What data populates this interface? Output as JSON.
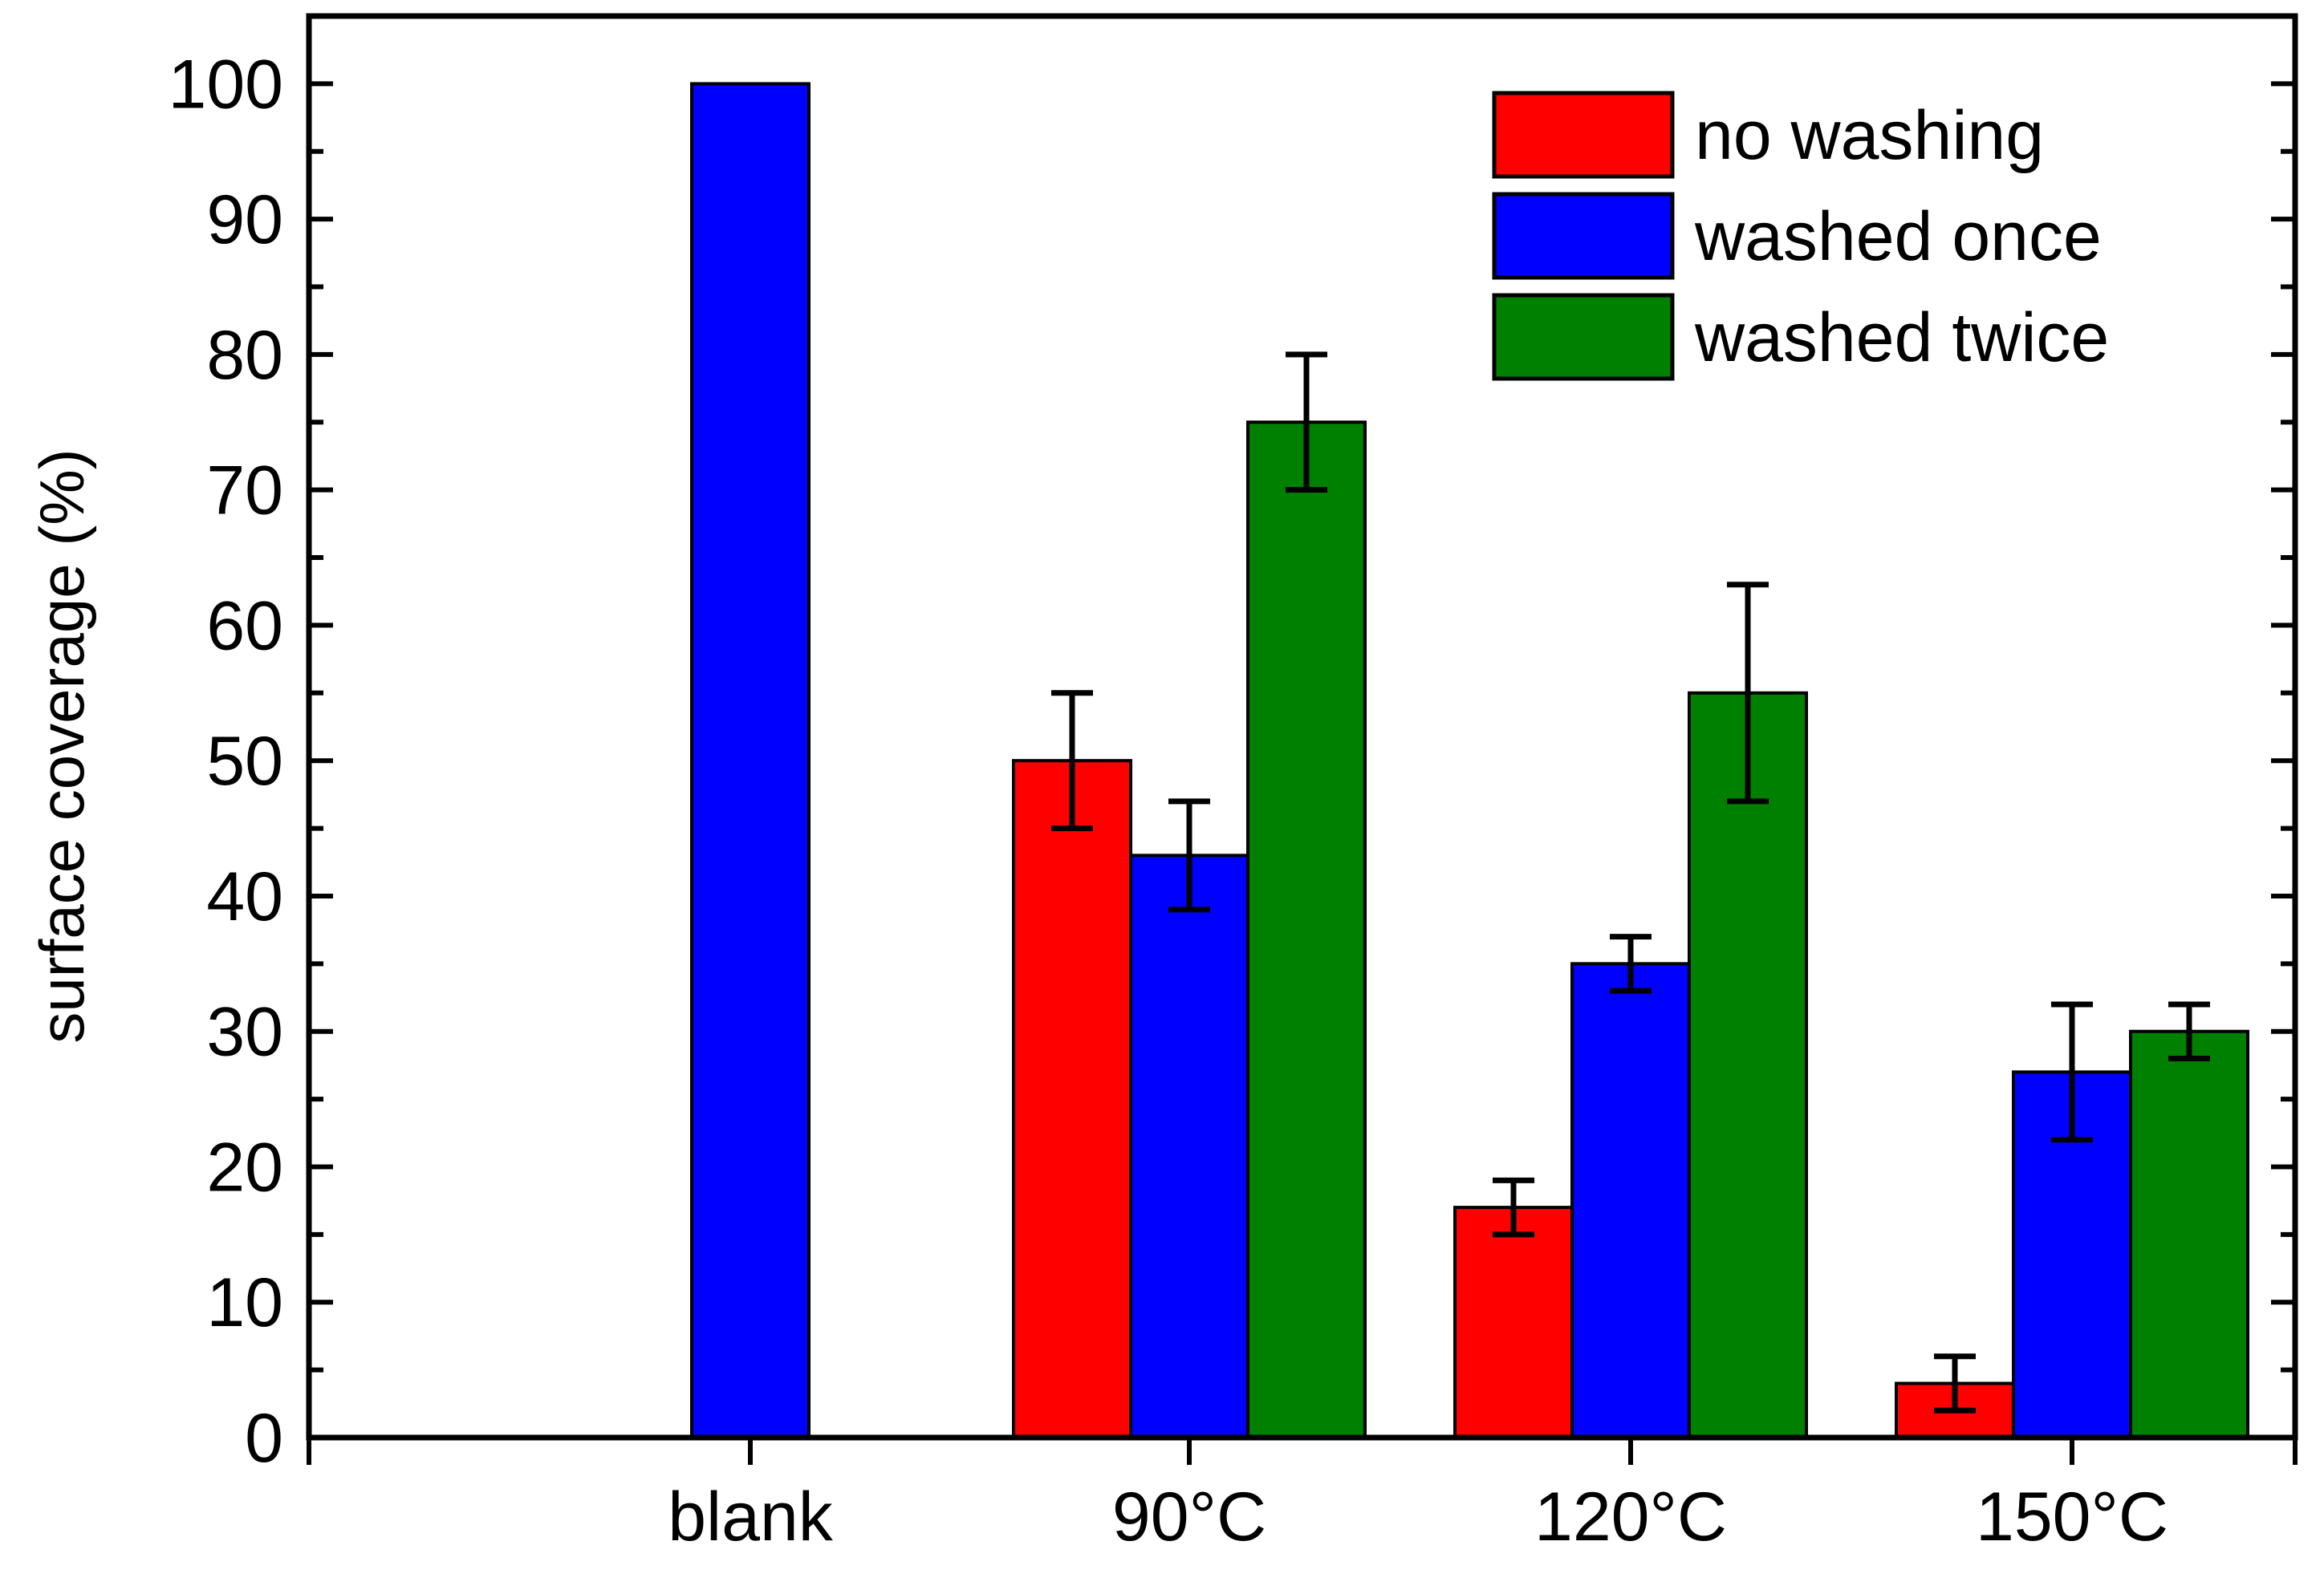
{
  "chart_data": {
    "type": "bar",
    "title": "",
    "xlabel": "",
    "ylabel": "surface coverage (%)",
    "ylim": [
      0,
      105
    ],
    "yticks": [
      "0",
      "10",
      "20",
      "30",
      "40",
      "50",
      "60",
      "70",
      "80",
      "90",
      "100"
    ],
    "categories": [
      "blank",
      "90°C",
      "120°C",
      "150°C"
    ],
    "series": [
      {
        "name": "no washing",
        "color": "#ff0000",
        "values": [
          null,
          50,
          17,
          4
        ],
        "errors": [
          null,
          5,
          2,
          2
        ]
      },
      {
        "name": "washed once",
        "color": "#0000ff",
        "values": [
          100,
          43,
          35,
          27
        ],
        "errors": [
          null,
          4,
          2,
          5
        ]
      },
      {
        "name": "washed twice",
        "color": "#008000",
        "values": [
          null,
          75,
          55,
          30
        ],
        "errors": [
          null,
          5,
          8,
          2
        ]
      }
    ],
    "legend_position": "top-right",
    "grid": false
  }
}
